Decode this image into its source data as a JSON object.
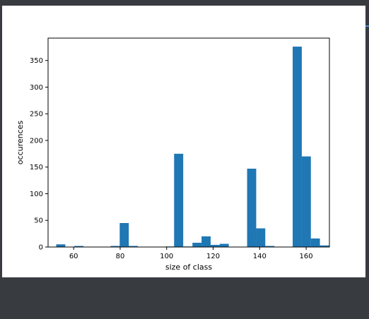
{
  "chart_data": {
    "type": "bar",
    "title": "",
    "xlabel": "size of class",
    "ylabel": "occurences",
    "xlim": [
      49,
      170
    ],
    "ylim": [
      0,
      392
    ],
    "bin_width": 3.92,
    "bin_starts": [
      52.5,
      60.3,
      75.9,
      79.8,
      83.7,
      99.4,
      103.2,
      107.2,
      111.1,
      115.0,
      118.9,
      122.8,
      134.6,
      138.5,
      142.4,
      154.2,
      158.1,
      162.0,
      165.9
    ],
    "values": [
      5,
      2,
      2,
      45,
      2,
      1,
      175,
      1,
      8,
      20,
      4,
      6,
      147,
      35,
      2,
      376,
      170,
      16,
      3
    ],
    "xticks": [
      60,
      80,
      100,
      120,
      140,
      160
    ],
    "yticks": [
      0,
      50,
      100,
      150,
      200,
      250,
      300,
      350
    ],
    "bar_color": "#1f77b4",
    "grid": false,
    "legend": "none"
  },
  "colors": {
    "background": "#383b3f",
    "figure": "#ffffff",
    "edge_marker": "#4a90d9"
  }
}
